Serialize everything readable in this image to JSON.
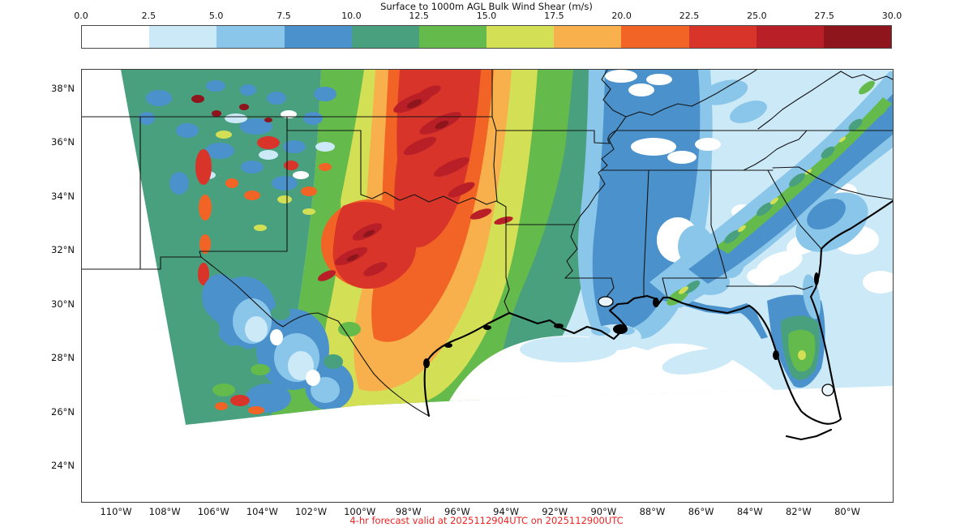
{
  "title": "Surface to 1000m AGL Bulk Wind Shear (m/s)",
  "colorbar": {
    "units": "m/s",
    "ticks": [
      "0.0",
      "2.5",
      "5.0",
      "7.5",
      "10.0",
      "12.5",
      "15.0",
      "17.5",
      "20.0",
      "22.5",
      "25.0",
      "27.5",
      "30.0"
    ],
    "colors": [
      "#ffffff",
      "#cbe9f7",
      "#8ac6e9",
      "#4b92cc",
      "#48a07e",
      "#65ba4c",
      "#d3df55",
      "#f7b04b",
      "#f26426",
      "#d8342a",
      "#b91f26",
      "#8e151b"
    ]
  },
  "axes": {
    "x_ticks": [
      "110°W",
      "108°W",
      "106°W",
      "104°W",
      "102°W",
      "100°W",
      "98°W",
      "96°W",
      "94°W",
      "92°W",
      "90°W",
      "88°W",
      "86°W",
      "84°W",
      "82°W",
      "80°W"
    ],
    "y_ticks": [
      "38°N",
      "36°N",
      "34°N",
      "32°N",
      "30°N",
      "28°N",
      "26°N",
      "24°N"
    ]
  },
  "caption": {
    "text": "4-hr forecast valid at 2025112904UTC on 2025112900UTC",
    "color": "#ee2222"
  }
}
